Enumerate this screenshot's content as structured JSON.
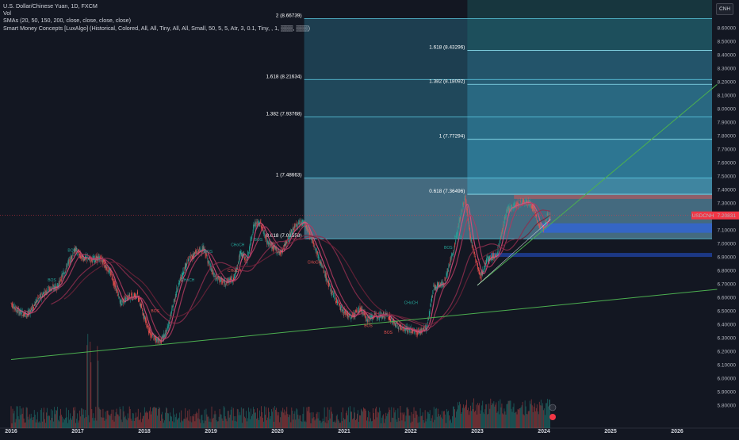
{
  "header": {
    "title_line": "U.S. Dollar/Chinese Yuan, 1D, FXCM",
    "vol_line": "Vol",
    "sma_line": "SMAs (20, 50, 150, 200, close, close, close, close)",
    "smc_line": "Smart Money Concepts [LuxAlgo] (Historical, Colored, All, All, Tiny, All, All, Small, 50, 5, 5, Atr, 3, 0.1, Tiny, , 1, ▒▒▒, ▒▒▒)"
  },
  "currency_button": "CNH",
  "price_tag": {
    "symbol": "USDCNH",
    "value": "7.20831",
    "color": "#f23645"
  },
  "colors": {
    "background": "#131722",
    "candle_up": "#26a69a",
    "candle_down": "#ef5350",
    "sma_20": "#e04f7e",
    "sma_50": "#b0395f",
    "sma_150": "#8e2e4d",
    "sma_200": "#6c2238",
    "trendline": "#4caf50",
    "fib_box": "#3aa6c9"
  },
  "chart_data": {
    "type": "candlestick",
    "symbol": "USDCNH",
    "y_axis": {
      "min": 5.75,
      "max": 8.7,
      "ticks": [
        "8.60000",
        "8.50000",
        "8.40000",
        "8.30000",
        "8.20000",
        "8.10000",
        "8.00000",
        "7.90000",
        "7.80000",
        "7.70000",
        "7.60000",
        "7.50000",
        "7.40000",
        "7.30000",
        "7.20000",
        "7.10000",
        "7.00000",
        "6.90000",
        "6.80000",
        "6.70000",
        "6.60000",
        "6.50000",
        "6.40000",
        "6.30000",
        "6.20000",
        "6.10000",
        "6.00000",
        "5.90000",
        "5.80000"
      ]
    },
    "x_axis": {
      "ticks": [
        "2016",
        "2017",
        "2018",
        "2019",
        "2020",
        "2021",
        "2022",
        "2023",
        "2024",
        "2025",
        "2026"
      ],
      "range": [
        2016.0,
        2026.6
      ]
    },
    "price_path": [
      [
        2016.0,
        6.56
      ],
      [
        2016.1,
        6.5
      ],
      [
        2016.25,
        6.47
      ],
      [
        2016.4,
        6.58
      ],
      [
        2016.55,
        6.66
      ],
      [
        2016.7,
        6.68
      ],
      [
        2016.85,
        6.84
      ],
      [
        2016.97,
        6.96
      ],
      [
        2017.05,
        6.9
      ],
      [
        2017.2,
        6.88
      ],
      [
        2017.35,
        6.89
      ],
      [
        2017.5,
        6.78
      ],
      [
        2017.65,
        6.56
      ],
      [
        2017.75,
        6.6
      ],
      [
        2017.9,
        6.62
      ],
      [
        2017.97,
        6.51
      ],
      [
        2018.1,
        6.32
      ],
      [
        2018.25,
        6.27
      ],
      [
        2018.35,
        6.36
      ],
      [
        2018.5,
        6.67
      ],
      [
        2018.65,
        6.87
      ],
      [
        2018.8,
        6.94
      ],
      [
        2018.9,
        6.96
      ],
      [
        2018.97,
        6.86
      ],
      [
        2019.05,
        6.76
      ],
      [
        2019.2,
        6.71
      ],
      [
        2019.35,
        6.74
      ],
      [
        2019.45,
        6.93
      ],
      [
        2019.55,
        6.88
      ],
      [
        2019.65,
        7.14
      ],
      [
        2019.75,
        7.15
      ],
      [
        2019.85,
        7.01
      ],
      [
        2019.97,
        6.96
      ],
      [
        2020.05,
        6.93
      ],
      [
        2020.15,
        7.02
      ],
      [
        2020.25,
        7.12
      ],
      [
        2020.4,
        7.16
      ],
      [
        2020.55,
        7.0
      ],
      [
        2020.65,
        6.86
      ],
      [
        2020.8,
        6.66
      ],
      [
        2020.97,
        6.51
      ],
      [
        2021.1,
        6.45
      ],
      [
        2021.25,
        6.52
      ],
      [
        2021.35,
        6.44
      ],
      [
        2021.5,
        6.47
      ],
      [
        2021.65,
        6.47
      ],
      [
        2021.8,
        6.39
      ],
      [
        2021.97,
        6.36
      ],
      [
        2022.1,
        6.34
      ],
      [
        2022.25,
        6.38
      ],
      [
        2022.35,
        6.68
      ],
      [
        2022.5,
        6.7
      ],
      [
        2022.65,
        6.95
      ],
      [
        2022.75,
        7.2
      ],
      [
        2022.82,
        7.35
      ],
      [
        2022.9,
        7.05
      ],
      [
        2022.97,
        6.9
      ],
      [
        2023.05,
        6.75
      ],
      [
        2023.15,
        6.88
      ],
      [
        2023.3,
        6.92
      ],
      [
        2023.45,
        7.25
      ],
      [
        2023.55,
        7.28
      ],
      [
        2023.65,
        7.3
      ],
      [
        2023.75,
        7.31
      ],
      [
        2023.85,
        7.27
      ],
      [
        2023.93,
        7.13
      ],
      [
        2024.0,
        7.1
      ],
      [
        2024.05,
        7.2
      ],
      [
        2024.1,
        7.21
      ]
    ],
    "sma_periods": [
      20,
      50,
      150,
      200
    ],
    "fib_levels_left": [
      {
        "label": "2 (8.66739)",
        "value": 8.66739
      },
      {
        "label": "1.618 (8.21634)",
        "value": 8.21634
      },
      {
        "label": "1.382 (7.93768)",
        "value": 7.93768
      },
      {
        "label": "1 (7.48663)",
        "value": 7.48663
      },
      {
        "label": "0.618 (7.03558)",
        "value": 7.03558
      }
    ],
    "fib_levels_right": [
      {
        "label": "1.618 (8.43296)",
        "value": 8.43296
      },
      {
        "label": "1.382 (8.18092)",
        "value": 8.18092
      },
      {
        "label": "1 (7.77294)",
        "value": 7.77294
      },
      {
        "label": "0.618 (7.36496)",
        "value": 7.36496
      }
    ],
    "smc_labels": [
      {
        "text": "BOS",
        "x": 2016.55,
        "y": 6.72,
        "color": "#26a69a"
      },
      {
        "text": "BOS",
        "x": 2016.85,
        "y": 6.94,
        "color": "#26a69a"
      },
      {
        "text": "CHoCH",
        "x": 2018.55,
        "y": 6.72,
        "color": "#26a69a"
      },
      {
        "text": "BOS",
        "x": 2018.1,
        "y": 6.49,
        "color": "#ef5350"
      },
      {
        "text": "BOS",
        "x": 2018.9,
        "y": 6.93,
        "color": "#26a69a"
      },
      {
        "text": "CHoCH",
        "x": 2019.25,
        "y": 6.79,
        "color": "#ef5350"
      },
      {
        "text": "CHoCH",
        "x": 2019.3,
        "y": 6.98,
        "color": "#26a69a"
      },
      {
        "text": "BOS",
        "x": 2019.65,
        "y": 7.02,
        "color": "#26a69a"
      },
      {
        "text": "CHoCH",
        "x": 2020.45,
        "y": 6.85,
        "color": "#ef5350"
      },
      {
        "text": "CHoCH",
        "x": 2021.9,
        "y": 6.55,
        "color": "#26a69a"
      },
      {
        "text": "BOS",
        "x": 2021.3,
        "y": 6.38,
        "color": "#ef5350"
      },
      {
        "text": "BOS",
        "x": 2021.6,
        "y": 6.33,
        "color": "#ef5350"
      },
      {
        "text": "BOS",
        "x": 2022.5,
        "y": 6.96,
        "color": "#26a69a"
      },
      {
        "text": "BOS",
        "x": 2022.65,
        "y": 7.04,
        "color": "#26a69a"
      }
    ],
    "trendlines": [
      {
        "name": "long-support",
        "from": [
          2016.0,
          6.14
        ],
        "to": [
          2026.6,
          6.66
        ]
      },
      {
        "name": "channel-support",
        "from": [
          2023.0,
          6.69
        ],
        "to": [
          2026.6,
          8.18
        ]
      }
    ],
    "volume_spike_years": [
      2017.15,
      2017.2,
      2017.3
    ]
  }
}
